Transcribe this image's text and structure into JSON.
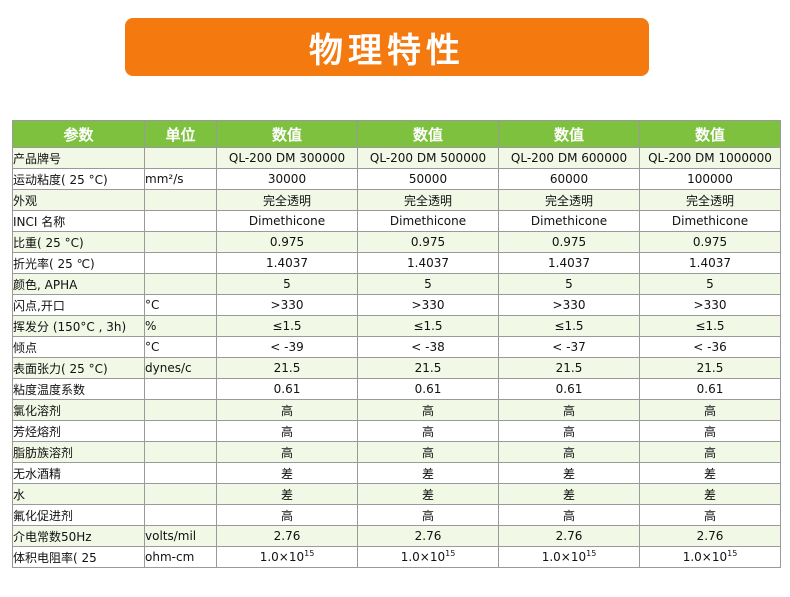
{
  "title": "物理特性",
  "headers": [
    "参数",
    "单位",
    "数值",
    "数值",
    "数值",
    "数值"
  ],
  "rows": [
    {
      "param": "产品牌号",
      "unit": "",
      "values": [
        "QL-200 DM 300000",
        "QL-200 DM 500000",
        "QL-200 DM 600000",
        "QL-200 DM 1000000"
      ]
    },
    {
      "param": "运动粘度( 25 °C)",
      "unit": "mm²/s",
      "values": [
        "30000",
        "50000",
        "60000",
        "100000"
      ]
    },
    {
      "param": "外观",
      "unit": "",
      "values": [
        "完全透明",
        "完全透明",
        "完全透明",
        "完全透明"
      ]
    },
    {
      "param": "INCI 名称",
      "unit": "",
      "values": [
        "Dimethicone",
        "Dimethicone",
        "Dimethicone",
        "Dimethicone"
      ]
    },
    {
      "param": "比重( 25 °C)",
      "unit": "",
      "values": [
        "0.975",
        "0.975",
        "0.975",
        "0.975"
      ]
    },
    {
      "param": "折光率( 25 ℃)",
      "unit": "",
      "values": [
        "1.4037",
        "1.4037",
        "1.4037",
        "1.4037"
      ]
    },
    {
      "param": "颜色, APHA",
      "unit": "",
      "values": [
        "5",
        "5",
        "5",
        "5"
      ]
    },
    {
      "param": "闪点,开口",
      "unit": "°C",
      "values": [
        ">330",
        ">330",
        ">330",
        ">330"
      ]
    },
    {
      "param": "挥发分 (150°C , 3h)",
      "unit": "%",
      "values": [
        "≤1.5",
        "≤1.5",
        "≤1.5",
        "≤1.5"
      ]
    },
    {
      "param": "倾点",
      "unit": "°C",
      "values": [
        "< -39",
        "< -38",
        "< -37",
        "< -36"
      ]
    },
    {
      "param": "表面张力( 25 °C)",
      "unit": "dynes/c",
      "values": [
        "21.5",
        "21.5",
        "21.5",
        "21.5"
      ]
    },
    {
      "param": "粘度温度系数",
      "unit": "",
      "values": [
        "0.61",
        "0.61",
        "0.61",
        "0.61"
      ]
    },
    {
      "param": "氯化溶剂",
      "unit": "",
      "values": [
        "高",
        "高",
        "高",
        "高"
      ]
    },
    {
      "param": "芳烃熔剂",
      "unit": "",
      "values": [
        "高",
        "高",
        "高",
        "高"
      ]
    },
    {
      "param": "脂肪族溶剂",
      "unit": "",
      "values": [
        "高",
        "高",
        "高",
        "高"
      ]
    },
    {
      "param": "无水酒精",
      "unit": "",
      "values": [
        "差",
        "差",
        "差",
        "差"
      ]
    },
    {
      "param": "水",
      "unit": "",
      "values": [
        "差",
        "差",
        "差",
        "差"
      ]
    },
    {
      "param": "氟化促进剂",
      "unit": "",
      "values": [
        "高",
        "高",
        "高",
        "高"
      ]
    },
    {
      "param": "介电常数50Hz",
      "unit": "volts/mil",
      "values": [
        "2.76",
        "2.76",
        "2.76",
        "2.76"
      ]
    },
    {
      "param": "体积电阻率( 25",
      "unit": "ohm-cm",
      "values": [
        "1.0×10",
        "1.0×10",
        "1.0×10",
        "1.0×10"
      ],
      "exponent": "15"
    }
  ]
}
